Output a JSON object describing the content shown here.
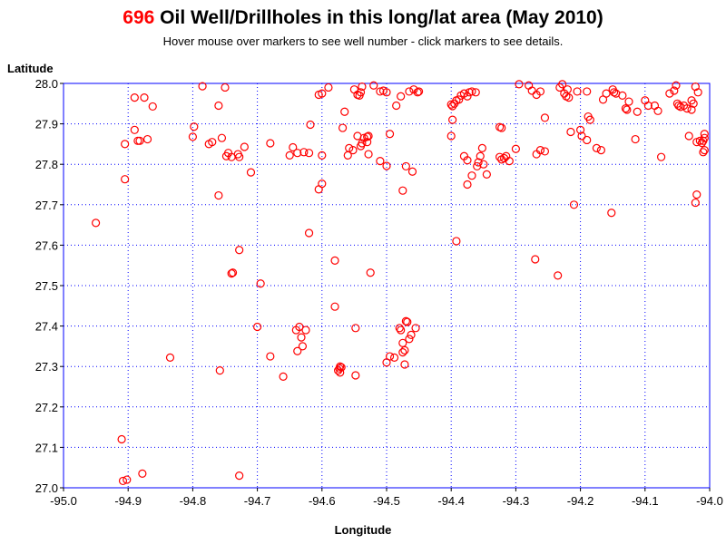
{
  "header": {
    "count": "696",
    "title_rest": " Oil Well/Drillholes in this long/lat area (May 2010)",
    "subtitle": "Hover mouse over markers to see well number - click markers to see details."
  },
  "colors": {
    "marker": "#ff0000",
    "axis": "#0000ff",
    "grid": "#0000ff",
    "count": "#ff0000"
  },
  "chart_data": {
    "type": "scatter",
    "xlabel": "Longitude",
    "ylabel": "Latitude",
    "xlim": [
      -95.0,
      -94.0
    ],
    "ylim": [
      27.0,
      28.0
    ],
    "xticks": [
      "-95.0",
      "-94.9",
      "-94.8",
      "-94.7",
      "-94.6",
      "-94.5",
      "-94.4",
      "-94.3",
      "-94.2",
      "-94.1",
      "-94.0"
    ],
    "yticks": [
      "27.0",
      "27.1",
      "27.2",
      "27.3",
      "27.4",
      "27.5",
      "27.6",
      "27.7",
      "27.8",
      "27.9",
      "28.0"
    ],
    "grid": true,
    "marker": "open-circle",
    "series": [
      {
        "points": [
          [
            -94.95,
            27.655
          ],
          [
            -94.905,
            27.763
          ],
          [
            -94.905,
            27.85
          ],
          [
            -94.89,
            27.965
          ],
          [
            -94.875,
            27.965
          ],
          [
            -94.862,
            27.943
          ],
          [
            -94.885,
            27.858
          ],
          [
            -94.882,
            27.858
          ],
          [
            -94.87,
            27.862
          ],
          [
            -94.89,
            27.885
          ],
          [
            -94.91,
            27.12
          ],
          [
            -94.908,
            27.017
          ],
          [
            -94.902,
            27.02
          ],
          [
            -94.878,
            27.035
          ],
          [
            -94.835,
            27.322
          ],
          [
            -94.8,
            27.868
          ],
          [
            -94.798,
            27.893
          ],
          [
            -94.785,
            27.993
          ],
          [
            -94.775,
            27.85
          ],
          [
            -94.77,
            27.855
          ],
          [
            -94.76,
            27.723
          ],
          [
            -94.76,
            27.945
          ],
          [
            -94.755,
            27.865
          ],
          [
            -94.75,
            27.99
          ],
          [
            -94.748,
            27.82
          ],
          [
            -94.745,
            27.828
          ],
          [
            -94.74,
            27.818
          ],
          [
            -94.73,
            27.825
          ],
          [
            -94.728,
            27.818
          ],
          [
            -94.71,
            27.78
          ],
          [
            -94.72,
            27.843
          ],
          [
            -94.74,
            27.53
          ],
          [
            -94.738,
            27.532
          ],
          [
            -94.728,
            27.588
          ],
          [
            -94.758,
            27.29
          ],
          [
            -94.728,
            27.03
          ],
          [
            -94.7,
            27.398
          ],
          [
            -94.695,
            27.505
          ],
          [
            -94.68,
            27.325
          ],
          [
            -94.68,
            27.852
          ],
          [
            -94.66,
            27.275
          ],
          [
            -94.65,
            27.822
          ],
          [
            -94.645,
            27.842
          ],
          [
            -94.638,
            27.828
          ],
          [
            -94.628,
            27.83
          ],
          [
            -94.62,
            27.828
          ],
          [
            -94.618,
            27.898
          ],
          [
            -94.62,
            27.63
          ],
          [
            -94.64,
            27.39
          ],
          [
            -94.635,
            27.398
          ],
          [
            -94.632,
            27.372
          ],
          [
            -94.63,
            27.35
          ],
          [
            -94.625,
            27.39
          ],
          [
            -94.638,
            27.338
          ],
          [
            -94.605,
            27.738
          ],
          [
            -94.6,
            27.752
          ],
          [
            -94.6,
            27.822
          ],
          [
            -94.605,
            27.972
          ],
          [
            -94.6,
            27.975
          ],
          [
            -94.59,
            27.99
          ],
          [
            -94.58,
            27.562
          ],
          [
            -94.58,
            27.448
          ],
          [
            -94.575,
            27.29
          ],
          [
            -94.573,
            27.295
          ],
          [
            -94.572,
            27.285
          ],
          [
            -94.572,
            27.3
          ],
          [
            -94.57,
            27.298
          ],
          [
            -94.565,
            27.93
          ],
          [
            -94.568,
            27.89
          ],
          [
            -94.56,
            27.822
          ],
          [
            -94.558,
            27.84
          ],
          [
            -94.552,
            27.835
          ],
          [
            -94.55,
            27.985
          ],
          [
            -94.545,
            27.972
          ],
          [
            -94.542,
            27.97
          ],
          [
            -94.54,
            27.978
          ],
          [
            -94.538,
            27.992
          ],
          [
            -94.545,
            27.87
          ],
          [
            -94.54,
            27.845
          ],
          [
            -94.538,
            27.852
          ],
          [
            -94.535,
            27.865
          ],
          [
            -94.53,
            27.868
          ],
          [
            -94.528,
            27.87
          ],
          [
            -94.53,
            27.855
          ],
          [
            -94.528,
            27.825
          ],
          [
            -94.525,
            27.532
          ],
          [
            -94.548,
            27.395
          ],
          [
            -94.548,
            27.278
          ],
          [
            -94.52,
            27.995
          ],
          [
            -94.51,
            27.98
          ],
          [
            -94.505,
            27.982
          ],
          [
            -94.5,
            27.978
          ],
          [
            -94.51,
            27.808
          ],
          [
            -94.5,
            27.796
          ],
          [
            -94.495,
            27.875
          ],
          [
            -94.5,
            27.31
          ],
          [
            -94.495,
            27.325
          ],
          [
            -94.488,
            27.322
          ],
          [
            -94.485,
            27.945
          ],
          [
            -94.478,
            27.968
          ],
          [
            -94.475,
            27.735
          ],
          [
            -94.47,
            27.795
          ],
          [
            -94.465,
            27.98
          ],
          [
            -94.458,
            27.985
          ],
          [
            -94.452,
            27.978
          ],
          [
            -94.45,
            27.98
          ],
          [
            -94.46,
            27.782
          ],
          [
            -94.48,
            27.395
          ],
          [
            -94.478,
            27.39
          ],
          [
            -94.47,
            27.412
          ],
          [
            -94.468,
            27.41
          ],
          [
            -94.462,
            27.378
          ],
          [
            -94.455,
            27.395
          ],
          [
            -94.465,
            27.368
          ],
          [
            -94.472,
            27.34
          ],
          [
            -94.475,
            27.335
          ],
          [
            -94.472,
            27.305
          ],
          [
            -94.475,
            27.358
          ],
          [
            -94.4,
            27.948
          ],
          [
            -94.395,
            27.95
          ],
          [
            -94.398,
            27.944
          ],
          [
            -94.392,
            27.958
          ],
          [
            -94.388,
            27.96
          ],
          [
            -94.385,
            27.97
          ],
          [
            -94.38,
            27.975
          ],
          [
            -94.375,
            27.968
          ],
          [
            -94.372,
            27.978
          ],
          [
            -94.368,
            27.98
          ],
          [
            -94.362,
            27.978
          ],
          [
            -94.398,
            27.91
          ],
          [
            -94.4,
            27.87
          ],
          [
            -94.392,
            27.61
          ],
          [
            -94.38,
            27.82
          ],
          [
            -94.375,
            27.81
          ],
          [
            -94.375,
            27.75
          ],
          [
            -94.368,
            27.772
          ],
          [
            -94.36,
            27.795
          ],
          [
            -94.358,
            27.805
          ],
          [
            -94.355,
            27.82
          ],
          [
            -94.352,
            27.84
          ],
          [
            -94.35,
            27.8
          ],
          [
            -94.345,
            27.775
          ],
          [
            -94.325,
            27.892
          ],
          [
            -94.322,
            27.89
          ],
          [
            -94.325,
            27.818
          ],
          [
            -94.322,
            27.812
          ],
          [
            -94.318,
            27.815
          ],
          [
            -94.315,
            27.82
          ],
          [
            -94.31,
            27.808
          ],
          [
            -94.3,
            27.838
          ],
          [
            -94.295,
            27.998
          ],
          [
            -94.28,
            27.995
          ],
          [
            -94.275,
            27.982
          ],
          [
            -94.268,
            27.972
          ],
          [
            -94.262,
            27.98
          ],
          [
            -94.268,
            27.825
          ],
          [
            -94.262,
            27.835
          ],
          [
            -94.255,
            27.832
          ],
          [
            -94.255,
            27.915
          ],
          [
            -94.27,
            27.565
          ],
          [
            -94.235,
            27.525
          ],
          [
            -94.232,
            27.99
          ],
          [
            -94.228,
            27.998
          ],
          [
            -94.225,
            27.975
          ],
          [
            -94.222,
            27.968
          ],
          [
            -94.22,
            27.985
          ],
          [
            -94.218,
            27.965
          ],
          [
            -94.215,
            27.88
          ],
          [
            -94.21,
            27.7
          ],
          [
            -94.205,
            27.98
          ],
          [
            -94.2,
            27.885
          ],
          [
            -94.198,
            27.87
          ],
          [
            -94.19,
            27.98
          ],
          [
            -94.188,
            27.918
          ],
          [
            -94.19,
            27.86
          ],
          [
            -94.185,
            27.91
          ],
          [
            -94.175,
            27.84
          ],
          [
            -94.168,
            27.835
          ],
          [
            -94.165,
            27.96
          ],
          [
            -94.16,
            27.975
          ],
          [
            -94.152,
            27.68
          ],
          [
            -94.15,
            27.985
          ],
          [
            -94.148,
            27.978
          ],
          [
            -94.145,
            27.975
          ],
          [
            -94.135,
            27.97
          ],
          [
            -94.13,
            27.938
          ],
          [
            -94.128,
            27.935
          ],
          [
            -94.125,
            27.955
          ],
          [
            -94.115,
            27.862
          ],
          [
            -94.112,
            27.93
          ],
          [
            -94.1,
            27.958
          ],
          [
            -94.095,
            27.945
          ],
          [
            -94.085,
            27.945
          ],
          [
            -94.08,
            27.932
          ],
          [
            -94.075,
            27.818
          ],
          [
            -94.062,
            27.975
          ],
          [
            -94.055,
            27.982
          ],
          [
            -94.052,
            27.995
          ],
          [
            -94.05,
            27.95
          ],
          [
            -94.048,
            27.945
          ],
          [
            -94.045,
            27.942
          ],
          [
            -94.04,
            27.945
          ],
          [
            -94.035,
            27.938
          ],
          [
            -94.032,
            27.87
          ],
          [
            -94.028,
            27.935
          ],
          [
            -94.028,
            27.958
          ],
          [
            -94.025,
            27.95
          ],
          [
            -94.022,
            27.992
          ],
          [
            -94.02,
            27.725
          ],
          [
            -94.018,
            27.978
          ],
          [
            -94.022,
            27.705
          ],
          [
            -94.015,
            27.858
          ],
          [
            -94.012,
            27.853
          ],
          [
            -94.01,
            27.858
          ],
          [
            -94.008,
            27.875
          ],
          [
            -94.008,
            27.865
          ],
          [
            -94.01,
            27.83
          ],
          [
            -94.008,
            27.835
          ],
          [
            -94.02,
            27.855
          ]
        ]
      }
    ]
  }
}
